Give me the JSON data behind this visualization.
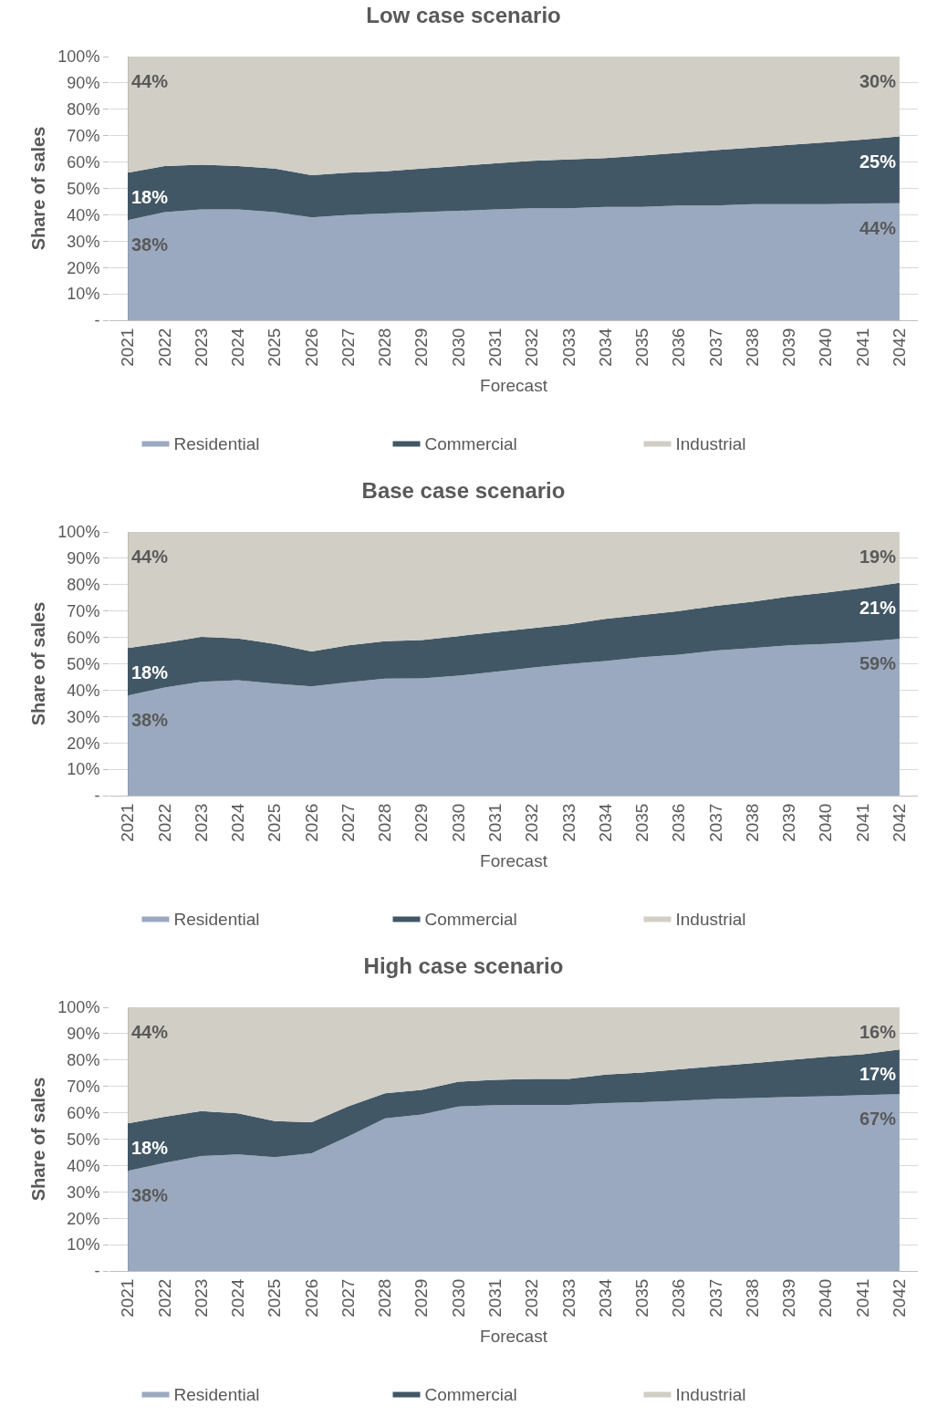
{
  "chart_data": [
    {
      "type": "area",
      "title": "Low case scenario",
      "ylabel": "Share of sales",
      "xlabel": "Forecast",
      "stacked": true,
      "legend": "bottom",
      "grid": "y",
      "categories": [
        "2021",
        "2022",
        "2023",
        "2024",
        "2025",
        "2026",
        "2027",
        "2028",
        "2029",
        "2030",
        "2031",
        "2032",
        "2033",
        "2034",
        "2035",
        "2036",
        "2037",
        "2038",
        "2039",
        "2040",
        "2041",
        "2042"
      ],
      "ylim": [
        0,
        100
      ],
      "yticks": [
        {
          "value": 0,
          "label": "-"
        },
        {
          "value": 10,
          "label": "10%"
        },
        {
          "value": 20,
          "label": "20%"
        },
        {
          "value": 30,
          "label": "30%"
        },
        {
          "value": 40,
          "label": "40%"
        },
        {
          "value": 50,
          "label": "50%"
        },
        {
          "value": 60,
          "label": "60%"
        },
        {
          "value": 70,
          "label": "70%"
        },
        {
          "value": 80,
          "label": "80%"
        },
        {
          "value": 90,
          "label": "90%"
        },
        {
          "value": 100,
          "label": "100%"
        }
      ],
      "series": [
        {
          "name": "Residential",
          "color": "#9aa9c0",
          "values": [
            38,
            41,
            42,
            42,
            41,
            39,
            40,
            40.5,
            41,
            41.5,
            42,
            42.5,
            42.5,
            43,
            43,
            43.5,
            43.5,
            44,
            44,
            44,
            44.3,
            44.4
          ],
          "value_labels": [
            "38%",
            null,
            null,
            null,
            null,
            null,
            null,
            null,
            null,
            null,
            null,
            null,
            null,
            null,
            null,
            null,
            null,
            null,
            null,
            null,
            null,
            "44%"
          ]
        },
        {
          "name": "Commercial",
          "color": "#415766",
          "values": [
            18,
            17.5,
            17,
            16.5,
            16.5,
            16,
            16,
            16,
            16.5,
            17,
            17.5,
            18,
            18.5,
            18.5,
            19.5,
            20,
            21,
            21.5,
            22.5,
            23.5,
            24.2,
            25.3
          ],
          "value_labels": [
            "18%",
            null,
            null,
            null,
            null,
            null,
            null,
            null,
            null,
            null,
            null,
            null,
            null,
            null,
            null,
            null,
            null,
            null,
            null,
            null,
            null,
            "25%"
          ]
        },
        {
          "name": "Industrial",
          "color": "#d1cec6",
          "values": [
            44,
            41.5,
            41,
            41.5,
            42.5,
            45,
            44,
            43.5,
            42.5,
            41.5,
            40.5,
            39.5,
            39,
            38.5,
            37.5,
            36.5,
            35.5,
            34.5,
            33.5,
            32.5,
            31.5,
            30.3
          ],
          "value_labels": [
            "44%",
            null,
            null,
            null,
            null,
            null,
            null,
            null,
            null,
            null,
            null,
            null,
            null,
            null,
            null,
            null,
            null,
            null,
            null,
            null,
            null,
            "30%"
          ]
        }
      ]
    },
    {
      "type": "area",
      "title": "Base case scenario",
      "ylabel": "Share of sales",
      "xlabel": "Forecast",
      "stacked": true,
      "legend": "bottom",
      "grid": "y",
      "categories": [
        "2021",
        "2022",
        "2023",
        "2024",
        "2025",
        "2026",
        "2027",
        "2028",
        "2029",
        "2030",
        "2031",
        "2032",
        "2033",
        "2034",
        "2035",
        "2036",
        "2037",
        "2038",
        "2039",
        "2040",
        "2041",
        "2042"
      ],
      "ylim": [
        0,
        100
      ],
      "yticks": [
        {
          "value": 0,
          "label": "-"
        },
        {
          "value": 10,
          "label": "10%"
        },
        {
          "value": 20,
          "label": "20%"
        },
        {
          "value": 30,
          "label": "30%"
        },
        {
          "value": 40,
          "label": "40%"
        },
        {
          "value": 50,
          "label": "50%"
        },
        {
          "value": 60,
          "label": "60%"
        },
        {
          "value": 70,
          "label": "70%"
        },
        {
          "value": 80,
          "label": "80%"
        },
        {
          "value": 90,
          "label": "90%"
        },
        {
          "value": 100,
          "label": "100%"
        }
      ],
      "series": [
        {
          "name": "Residential",
          "color": "#9aa9c0",
          "values": [
            38,
            41,
            43.2,
            43.8,
            42.5,
            41.4,
            43,
            44.4,
            44.5,
            45.5,
            47,
            48.5,
            49.9,
            51,
            52.5,
            53.5,
            55,
            56,
            57,
            57.5,
            58.3,
            59.4
          ],
          "value_labels": [
            "38%",
            null,
            null,
            null,
            null,
            null,
            null,
            null,
            null,
            null,
            null,
            null,
            null,
            null,
            null,
            null,
            null,
            null,
            null,
            null,
            null,
            "59%"
          ]
        },
        {
          "name": "Commercial",
          "color": "#415766",
          "values": [
            18,
            17,
            17,
            15.8,
            15,
            13.3,
            14,
            14.2,
            14.5,
            15,
            15,
            15,
            15.1,
            16,
            16,
            16.5,
            17,
            17.5,
            18.5,
            19.5,
            20.4,
            21.3
          ],
          "value_labels": [
            "18%",
            null,
            null,
            null,
            null,
            null,
            null,
            null,
            null,
            null,
            null,
            null,
            null,
            null,
            null,
            null,
            null,
            null,
            null,
            null,
            null,
            "21%"
          ]
        },
        {
          "name": "Industrial",
          "color": "#d1cec6",
          "values": [
            44,
            42,
            39.8,
            40.4,
            42.5,
            45.3,
            43,
            41.4,
            41,
            39.5,
            38,
            36.5,
            35,
            33,
            31.5,
            30,
            28,
            26.5,
            24.5,
            23,
            21.3,
            19.3
          ],
          "value_labels": [
            "44%",
            null,
            null,
            null,
            null,
            null,
            null,
            null,
            null,
            null,
            null,
            null,
            null,
            null,
            null,
            null,
            null,
            null,
            null,
            null,
            null,
            "19%"
          ]
        }
      ]
    },
    {
      "type": "area",
      "title": "High case scenario",
      "ylabel": "Share of sales",
      "xlabel": "Forecast",
      "stacked": true,
      "legend": "bottom",
      "grid": "y",
      "categories": [
        "2021",
        "2022",
        "2023",
        "2024",
        "2025",
        "2026",
        "2027",
        "2028",
        "2029",
        "2030",
        "2031",
        "2032",
        "2033",
        "2034",
        "2035",
        "2036",
        "2037",
        "2038",
        "2039",
        "2040",
        "2041",
        "2042"
      ],
      "ylim": [
        0,
        100
      ],
      "yticks": [
        {
          "value": 0,
          "label": "-"
        },
        {
          "value": 10,
          "label": "10%"
        },
        {
          "value": 20,
          "label": "20%"
        },
        {
          "value": 30,
          "label": "30%"
        },
        {
          "value": 40,
          "label": "40%"
        },
        {
          "value": 50,
          "label": "50%"
        },
        {
          "value": 60,
          "label": "60%"
        },
        {
          "value": 70,
          "label": "70%"
        },
        {
          "value": 80,
          "label": "80%"
        },
        {
          "value": 90,
          "label": "90%"
        },
        {
          "value": 100,
          "label": "100%"
        }
      ],
      "series": [
        {
          "name": "Residential",
          "color": "#9aa9c0",
          "values": [
            38,
            41,
            43.6,
            44.2,
            43.2,
            44.6,
            51,
            57.9,
            59.3,
            62.4,
            62.9,
            63,
            63,
            63.7,
            64,
            64.5,
            65.2,
            65.6,
            66,
            66.3,
            66.7,
            67
          ],
          "value_labels": [
            "38%",
            null,
            null,
            null,
            null,
            null,
            null,
            null,
            null,
            null,
            null,
            null,
            null,
            null,
            null,
            null,
            null,
            null,
            null,
            null,
            null,
            "67%"
          ]
        },
        {
          "name": "Commercial",
          "color": "#415766",
          "values": [
            18,
            17.5,
            17,
            15.6,
            13.6,
            11.8,
            11.5,
            9.5,
            9.4,
            9.4,
            9.6,
            9.8,
            9.8,
            10.8,
            11.3,
            12,
            12.5,
            13.2,
            14,
            14.9,
            15.5,
            17
          ],
          "value_labels": [
            "18%",
            null,
            null,
            null,
            null,
            null,
            null,
            null,
            null,
            null,
            null,
            null,
            null,
            null,
            null,
            null,
            null,
            null,
            null,
            null,
            null,
            "17%"
          ]
        },
        {
          "name": "Industrial",
          "color": "#d1cec6",
          "values": [
            44,
            41.5,
            39.4,
            40.2,
            43.2,
            43.6,
            37.5,
            32.6,
            31.3,
            28.2,
            27.5,
            27.2,
            27.2,
            25.5,
            24.7,
            23.5,
            22.3,
            21.2,
            20,
            18.8,
            17.8,
            16
          ],
          "value_labels": [
            "44%",
            null,
            null,
            null,
            null,
            null,
            null,
            null,
            null,
            null,
            null,
            null,
            null,
            null,
            null,
            null,
            null,
            null,
            null,
            null,
            null,
            "16%"
          ]
        }
      ]
    }
  ]
}
